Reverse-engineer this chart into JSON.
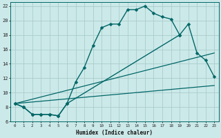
{
  "xlabel": "Humidex (Indice chaleur)",
  "background_color": "#cce9e9",
  "grid_color": "#aacccc",
  "line_color": "#006666",
  "xlim": [
    -0.5,
    23.5
  ],
  "ylim": [
    6,
    22.5
  ],
  "xticks": [
    0,
    1,
    2,
    3,
    4,
    5,
    6,
    7,
    8,
    9,
    10,
    11,
    12,
    13,
    14,
    15,
    16,
    17,
    18,
    19,
    20,
    21,
    22,
    23
  ],
  "yticks": [
    6,
    8,
    10,
    12,
    14,
    16,
    18,
    20,
    22
  ],
  "series": [
    {
      "x": [
        0,
        1,
        2,
        3,
        4,
        5,
        6,
        7,
        8,
        9,
        10,
        11,
        12,
        13,
        14,
        15,
        16,
        17,
        18,
        19
      ],
      "y": [
        8.5,
        8.0,
        7.0,
        7.0,
        7.0,
        6.8,
        8.5,
        11.5,
        13.5,
        16.5,
        19.0,
        19.5,
        19.5,
        21.5,
        21.5,
        22.0,
        21.0,
        20.5,
        20.2,
        18.0
      ],
      "marker": true,
      "markersize": 2.5,
      "linewidth": 1.0
    },
    {
      "x": [
        0,
        1,
        2,
        3,
        4,
        5,
        6,
        19,
        20,
        21,
        22,
        23
      ],
      "y": [
        8.5,
        8.0,
        7.0,
        7.0,
        7.0,
        6.8,
        8.5,
        18.0,
        19.5,
        15.5,
        14.5,
        12.2
      ],
      "marker": true,
      "markersize": 2.5,
      "linewidth": 1.0
    },
    {
      "x": [
        0,
        23
      ],
      "y": [
        8.5,
        15.5
      ],
      "marker": false,
      "linewidth": 0.9
    },
    {
      "x": [
        0,
        23
      ],
      "y": [
        8.5,
        11.0
      ],
      "marker": false,
      "linewidth": 0.9
    }
  ]
}
